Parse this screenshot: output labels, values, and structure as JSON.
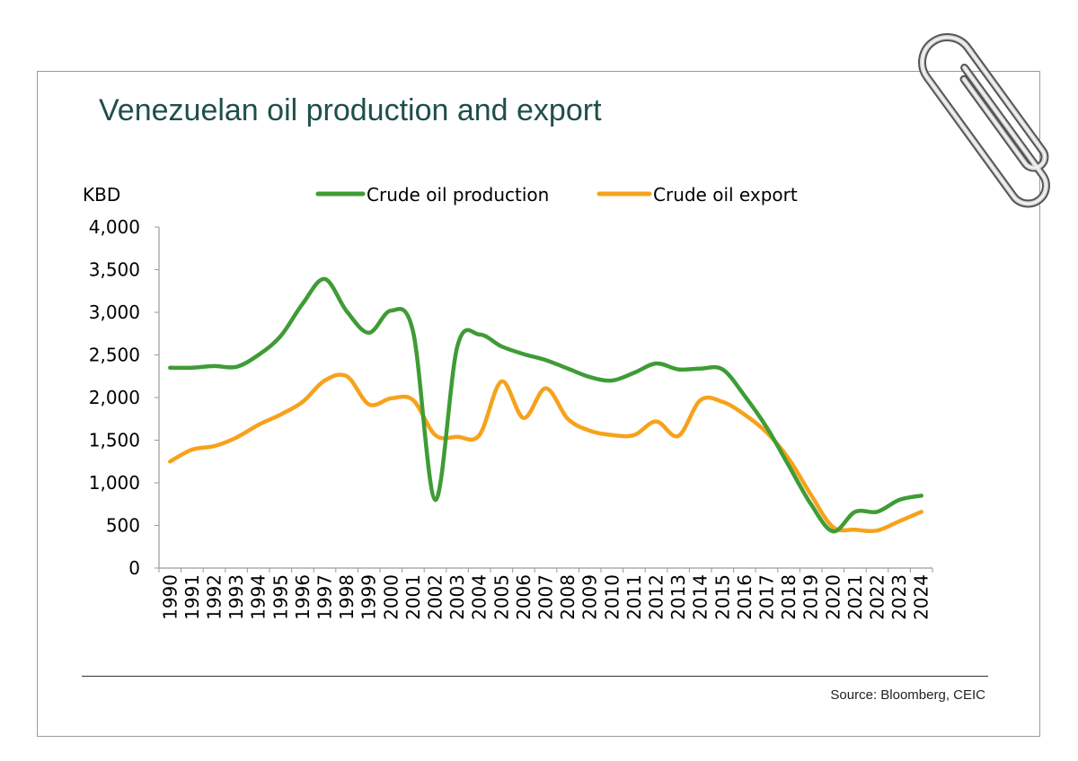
{
  "title": "Venezuelan oil production and export",
  "source": "Source: Bloomberg, CEIC",
  "chart_data": {
    "type": "line",
    "ylabel": "KBD",
    "xlabel": "",
    "ylim": [
      0,
      4000
    ],
    "yticks": [
      0,
      500,
      1000,
      1500,
      2000,
      2500,
      3000,
      3500,
      4000
    ],
    "ytick_labels": [
      "0",
      "500",
      "1,000",
      "1,500",
      "2,000",
      "2,500",
      "3,000",
      "3,500",
      "4,000"
    ],
    "grid": false,
    "legend": "top-center",
    "x": [
      "1990",
      "1991",
      "1992",
      "1993",
      "1994",
      "1995",
      "1996",
      "1997",
      "1998",
      "1999",
      "2000",
      "2001",
      "2002",
      "2003",
      "2004",
      "2005",
      "2006",
      "2007",
      "2008",
      "2009",
      "2010",
      "2011",
      "2012",
      "2013",
      "2014",
      "2015",
      "2016",
      "2017",
      "2018",
      "2019",
      "2020",
      "2021",
      "2022",
      "2023",
      "2024"
    ],
    "series": [
      {
        "name": "Crude oil production",
        "color": "#3e9c35",
        "values": [
          2350,
          2350,
          2370,
          2360,
          2500,
          2720,
          3100,
          3390,
          3010,
          2760,
          3020,
          2770,
          800,
          2600,
          2740,
          2600,
          2510,
          2440,
          2340,
          2240,
          2200,
          2290,
          2400,
          2330,
          2340,
          2330,
          2020,
          1650,
          1200,
          750,
          430,
          660,
          660,
          800,
          850
        ]
      },
      {
        "name": "Crude oil export",
        "color": "#f7a21b",
        "values": [
          1250,
          1390,
          1430,
          1530,
          1680,
          1800,
          1950,
          2200,
          2250,
          1920,
          1990,
          1970,
          1560,
          1540,
          1560,
          2190,
          1760,
          2110,
          1750,
          1610,
          1560,
          1560,
          1720,
          1550,
          1970,
          1950,
          1800,
          1590,
          1280,
          860,
          480,
          450,
          440,
          550,
          660
        ]
      }
    ]
  }
}
